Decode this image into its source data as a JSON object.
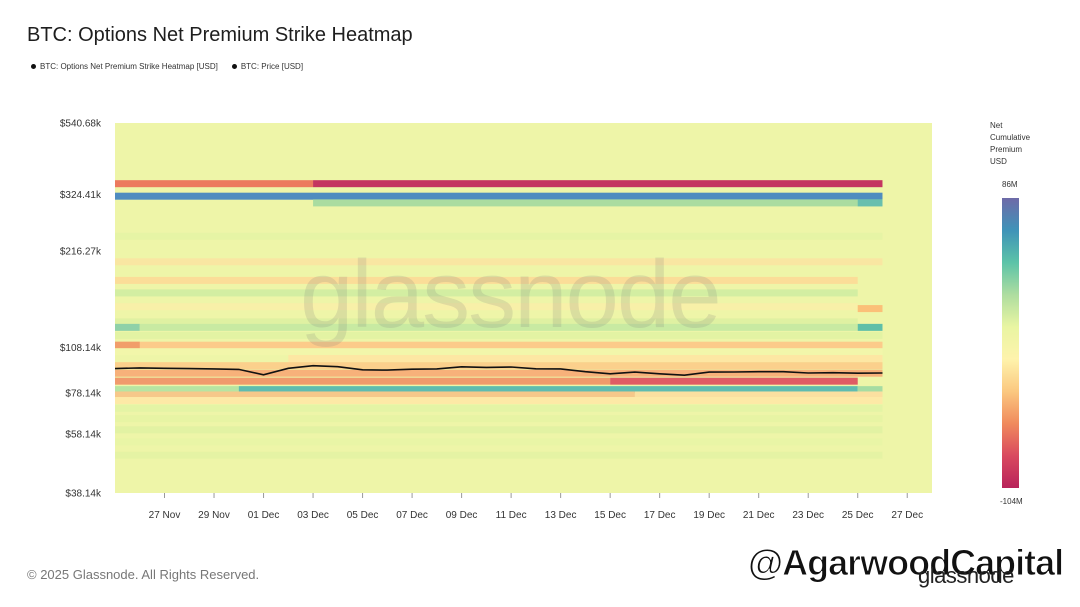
{
  "title": "BTC: Options Net Premium Strike Heatmap",
  "legend": [
    {
      "label": "BTC: Options Net Premium Strike Heatmap [USD]",
      "color": "#111111"
    },
    {
      "label": "BTC: Price [USD]",
      "color": "#111111"
    }
  ],
  "watermark": "glassnode",
  "footer": "© 2025 Glassnode. All Rights Reserved.",
  "brand": "glassnode",
  "handle": "@AgarwoodCapital",
  "colorbar": {
    "title": [
      "Net",
      "Cumulative",
      "Premium",
      "USD"
    ],
    "max_label": "86M",
    "min_label": "-104M",
    "stops": [
      "#6e6aa8",
      "#3f93b8",
      "#5cc3a8",
      "#aedda0",
      "#e9f5a2",
      "#fef3ac",
      "#fbc880",
      "#f08a5d",
      "#d9495f",
      "#b8235a"
    ]
  },
  "chart_data": {
    "type": "heatmap",
    "y_scale": "log",
    "ylim": [
      38140,
      540680
    ],
    "y_ticks": [
      {
        "label": "$540.68k",
        "value": 540680
      },
      {
        "label": "$324.41k",
        "value": 324410
      },
      {
        "label": "$216.27k",
        "value": 216270
      },
      {
        "label": "$108.14k",
        "value": 108140
      },
      {
        "label": "$78.14k",
        "value": 78140
      },
      {
        "label": "$58.14k",
        "value": 58140
      },
      {
        "label": "$38.14k",
        "value": 38140
      }
    ],
    "x_start": "2024-11-25",
    "x_end": "2024-12-28",
    "x_ticks": [
      {
        "label": "27 Nov",
        "date": "2024-11-27"
      },
      {
        "label": "29 Nov",
        "date": "2024-11-29"
      },
      {
        "label": "01 Dec",
        "date": "2024-12-01"
      },
      {
        "label": "03 Dec",
        "date": "2024-12-03"
      },
      {
        "label": "05 Dec",
        "date": "2024-12-05"
      },
      {
        "label": "07 Dec",
        "date": "2024-12-07"
      },
      {
        "label": "09 Dec",
        "date": "2024-12-09"
      },
      {
        "label": "11 Dec",
        "date": "2024-12-11"
      },
      {
        "label": "13 Dec",
        "date": "2024-12-13"
      },
      {
        "label": "15 Dec",
        "date": "2024-12-15"
      },
      {
        "label": "17 Dec",
        "date": "2024-12-17"
      },
      {
        "label": "19 Dec",
        "date": "2024-12-19"
      },
      {
        "label": "21 Dec",
        "date": "2024-12-21"
      },
      {
        "label": "23 Dec",
        "date": "2024-12-23"
      },
      {
        "label": "25 Dec",
        "date": "2024-12-25"
      },
      {
        "label": "27 Dec",
        "date": "2024-12-27"
      }
    ],
    "background_color": "#eef5a8",
    "bands": [
      {
        "strike": 350000,
        "start": "2024-11-25",
        "end": "2024-12-03",
        "color": "#ec7a5e"
      },
      {
        "strike": 350000,
        "start": "2024-12-03",
        "end": "2024-12-26",
        "color": "#c43560"
      },
      {
        "strike": 320000,
        "start": "2024-11-25",
        "end": "2024-12-26",
        "color": "#4f8cbf"
      },
      {
        "strike": 305000,
        "start": "2024-12-03",
        "end": "2024-12-26",
        "color": "#aadca0"
      },
      {
        "strike": 305000,
        "start": "2024-12-25",
        "end": "2024-12-26",
        "color": "#68bfae"
      },
      {
        "strike": 240000,
        "start": "2024-11-25",
        "end": "2024-12-26",
        "color": "#e6f4a5"
      },
      {
        "strike": 200000,
        "start": "2024-11-25",
        "end": "2024-12-26",
        "color": "#f9e6a2"
      },
      {
        "strike": 175000,
        "start": "2024-11-25",
        "end": "2024-12-25",
        "color": "#fbdd98"
      },
      {
        "strike": 160000,
        "start": "2024-11-25",
        "end": "2024-12-25",
        "color": "#d3eea2"
      },
      {
        "strike": 145000,
        "start": "2024-11-25",
        "end": "2024-12-25",
        "color": "#f8f0a8"
      },
      {
        "strike": 130000,
        "start": "2024-11-25",
        "end": "2024-12-25",
        "color": "#dff1a2"
      },
      {
        "strike": 143000,
        "start": "2024-12-25",
        "end": "2024-12-26",
        "color": "#fbc078"
      },
      {
        "strike": 125000,
        "start": "2024-11-25",
        "end": "2024-11-26",
        "color": "#8fd1a8"
      },
      {
        "strike": 125000,
        "start": "2024-11-26",
        "end": "2024-12-25",
        "color": "#c8eaa2"
      },
      {
        "strike": 125000,
        "start": "2024-12-25",
        "end": "2024-12-26",
        "color": "#5fbfa8"
      },
      {
        "strike": 118000,
        "start": "2024-11-25",
        "end": "2024-12-26",
        "color": "#e3f3a3"
      },
      {
        "strike": 110000,
        "start": "2024-11-25",
        "end": "2024-12-26",
        "color": "#fccb8a"
      },
      {
        "strike": 110000,
        "start": "2024-11-25",
        "end": "2024-11-26",
        "color": "#f19e6a"
      },
      {
        "strike": 105000,
        "start": "2024-11-25",
        "end": "2024-12-26",
        "color": "#f2f6aa"
      },
      {
        "strike": 100000,
        "start": "2024-12-02",
        "end": "2024-12-26",
        "color": "#fde7a3"
      },
      {
        "strike": 95000,
        "start": "2024-11-25",
        "end": "2024-12-26",
        "color": "#fbd08c"
      },
      {
        "strike": 90000,
        "start": "2024-11-25",
        "end": "2024-12-26",
        "color": "#f7b17a"
      },
      {
        "strike": 85000,
        "start": "2024-11-25",
        "end": "2024-12-15",
        "color": "#f09a6c"
      },
      {
        "strike": 85000,
        "start": "2024-12-15",
        "end": "2024-12-25",
        "color": "#df5c64"
      },
      {
        "strike": 80000,
        "start": "2024-11-25",
        "end": "2024-11-30",
        "color": "#b7e4a2"
      },
      {
        "strike": 80000,
        "start": "2024-11-30",
        "end": "2024-12-25",
        "color": "#5fbcb0"
      },
      {
        "strike": 80000,
        "start": "2024-12-25",
        "end": "2024-12-26",
        "color": "#a6dca2"
      },
      {
        "strike": 77000,
        "start": "2024-11-25",
        "end": "2024-12-16",
        "color": "#f6c88a"
      },
      {
        "strike": 77000,
        "start": "2024-12-16",
        "end": "2024-12-26",
        "color": "#fbe0a0"
      },
      {
        "strike": 74000,
        "start": "2024-11-25",
        "end": "2024-12-26",
        "color": "#fde9a6"
      },
      {
        "strike": 70000,
        "start": "2024-11-25",
        "end": "2024-12-26",
        "color": "#e4f4a5"
      },
      {
        "strike": 65000,
        "start": "2024-11-25",
        "end": "2024-12-26",
        "color": "#e7f4a4"
      },
      {
        "strike": 60000,
        "start": "2024-11-25",
        "end": "2024-12-26",
        "color": "#e2f2a3"
      },
      {
        "strike": 55000,
        "start": "2024-11-25",
        "end": "2024-12-26",
        "color": "#e9f5a6"
      },
      {
        "strike": 50000,
        "start": "2024-11-25",
        "end": "2024-12-26",
        "color": "#e5f3a4"
      }
    ],
    "price_series": {
      "name": "BTC: Price [USD]",
      "points": [
        {
          "date": "2024-11-25",
          "value": 93000
        },
        {
          "date": "2024-11-26",
          "value": 93500
        },
        {
          "date": "2024-11-27",
          "value": 93200
        },
        {
          "date": "2024-11-28",
          "value": 93000
        },
        {
          "date": "2024-11-29",
          "value": 92800
        },
        {
          "date": "2024-11-30",
          "value": 92500
        },
        {
          "date": "2024-12-01",
          "value": 89000
        },
        {
          "date": "2024-12-02",
          "value": 93200
        },
        {
          "date": "2024-12-03",
          "value": 95000
        },
        {
          "date": "2024-12-04",
          "value": 94300
        },
        {
          "date": "2024-12-05",
          "value": 92200
        },
        {
          "date": "2024-12-06",
          "value": 92000
        },
        {
          "date": "2024-12-07",
          "value": 92600
        },
        {
          "date": "2024-12-08",
          "value": 92800
        },
        {
          "date": "2024-12-09",
          "value": 94200
        },
        {
          "date": "2024-12-10",
          "value": 93800
        },
        {
          "date": "2024-12-11",
          "value": 94100
        },
        {
          "date": "2024-12-12",
          "value": 92900
        },
        {
          "date": "2024-12-13",
          "value": 92800
        },
        {
          "date": "2024-12-14",
          "value": 91000
        },
        {
          "date": "2024-12-15",
          "value": 89600
        },
        {
          "date": "2024-12-16",
          "value": 90700
        },
        {
          "date": "2024-12-17",
          "value": 89600
        },
        {
          "date": "2024-12-18",
          "value": 88700
        },
        {
          "date": "2024-12-19",
          "value": 90700
        },
        {
          "date": "2024-12-20",
          "value": 90800
        },
        {
          "date": "2024-12-21",
          "value": 91000
        },
        {
          "date": "2024-12-22",
          "value": 91000
        },
        {
          "date": "2024-12-23",
          "value": 90100
        },
        {
          "date": "2024-12-24",
          "value": 90300
        },
        {
          "date": "2024-12-25",
          "value": 90000
        },
        {
          "date": "2024-12-26",
          "value": 90100
        }
      ]
    }
  }
}
